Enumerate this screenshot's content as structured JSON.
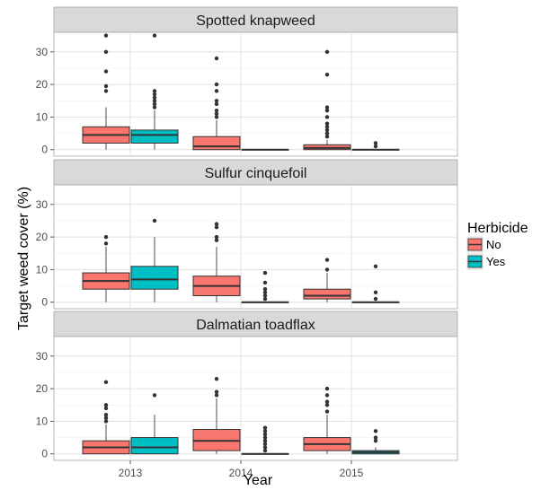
{
  "chart_data": {
    "type": "boxplot",
    "xlabel": "Year",
    "ylabel": "Target weed cover (%)",
    "categories": [
      "2013",
      "2014",
      "2015"
    ],
    "ylim": [
      -2,
      36
    ],
    "yticks": [
      0,
      10,
      20,
      30
    ],
    "grid": true,
    "legend": {
      "title": "Herbicide",
      "position": "right",
      "entries": [
        {
          "label": "No",
          "color": "#F8766D"
        },
        {
          "label": "Yes",
          "color": "#00BFC4"
        }
      ]
    },
    "panels": [
      {
        "title": "Spotted knapweed",
        "groups": [
          {
            "year": "2013",
            "herbicide": "No",
            "min": 0,
            "q1": 2,
            "median": 4.5,
            "q3": 7,
            "max": 13,
            "outliers": [
              18,
              19.5,
              24,
              30,
              35
            ]
          },
          {
            "year": "2013",
            "herbicide": "Yes",
            "min": 0,
            "q1": 2,
            "median": 4.5,
            "q3": 6,
            "max": 12,
            "outliers": [
              13,
              14,
              15,
              16,
              17,
              18,
              35
            ]
          },
          {
            "year": "2014",
            "herbicide": "No",
            "min": 0,
            "q1": 0,
            "median": 1,
            "q3": 4,
            "max": 9,
            "outliers": [
              10,
              11,
              12,
              14,
              15,
              18,
              20,
              28
            ]
          },
          {
            "year": "2014",
            "herbicide": "Yes",
            "min": 0,
            "q1": 0,
            "median": 0,
            "q3": 0,
            "max": 0,
            "outliers": []
          },
          {
            "year": "2015",
            "herbicide": "No",
            "min": 0,
            "q1": 0,
            "median": 0.5,
            "q3": 1.5,
            "max": 3,
            "outliers": [
              4,
              5,
              6,
              7,
              8,
              10,
              12,
              13,
              23,
              30
            ]
          },
          {
            "year": "2015",
            "herbicide": "Yes",
            "min": 0,
            "q1": 0,
            "median": 0,
            "q3": 0,
            "max": 0,
            "outliers": [
              1,
              2
            ]
          }
        ]
      },
      {
        "title": "Sulfur cinquefoil",
        "groups": [
          {
            "year": "2013",
            "herbicide": "No",
            "min": 0,
            "q1": 4,
            "median": 6.5,
            "q3": 9,
            "max": 17,
            "outliers": [
              18,
              20
            ]
          },
          {
            "year": "2013",
            "herbicide": "Yes",
            "min": 0,
            "q1": 4,
            "median": 7,
            "q3": 11,
            "max": 20,
            "outliers": [
              25
            ]
          },
          {
            "year": "2014",
            "herbicide": "No",
            "min": 0,
            "q1": 2,
            "median": 5,
            "q3": 8,
            "max": 17,
            "outliers": [
              19,
              20,
              23,
              24
            ]
          },
          {
            "year": "2014",
            "herbicide": "Yes",
            "min": 0,
            "q1": 0,
            "median": 0,
            "q3": 0,
            "max": 0,
            "outliers": [
              1,
              2,
              3,
              4,
              6,
              9
            ]
          },
          {
            "year": "2015",
            "herbicide": "No",
            "min": 0,
            "q1": 1,
            "median": 2,
            "q3": 4,
            "max": 9,
            "outliers": [
              10,
              13
            ]
          },
          {
            "year": "2015",
            "herbicide": "Yes",
            "min": 0,
            "q1": 0,
            "median": 0,
            "q3": 0,
            "max": 0,
            "outliers": [
              1,
              3,
              11
            ]
          }
        ]
      },
      {
        "title": "Dalmatian toadflax",
        "groups": [
          {
            "year": "2013",
            "herbicide": "No",
            "min": 0,
            "q1": 0,
            "median": 2,
            "q3": 4,
            "max": 9,
            "outliers": [
              10,
              11,
              12,
              14,
              15,
              22
            ]
          },
          {
            "year": "2013",
            "herbicide": "Yes",
            "min": 0,
            "q1": 0,
            "median": 2,
            "q3": 5,
            "max": 12,
            "outliers": [
              18
            ]
          },
          {
            "year": "2014",
            "herbicide": "No",
            "min": 0,
            "q1": 1,
            "median": 4,
            "q3": 7.5,
            "max": 17,
            "outliers": [
              18,
              19,
              23
            ]
          },
          {
            "year": "2014",
            "herbicide": "Yes",
            "min": 0,
            "q1": 0,
            "median": 0,
            "q3": 0,
            "max": 0,
            "outliers": [
              1,
              2,
              3,
              4,
              5,
              6,
              7,
              8
            ]
          },
          {
            "year": "2015",
            "herbicide": "No",
            "min": 0,
            "q1": 1,
            "median": 3,
            "q3": 5,
            "max": 12,
            "outliers": [
              13,
              15,
              16,
              18,
              20
            ]
          },
          {
            "year": "2015",
            "herbicide": "Yes",
            "min": 0,
            "q1": 0,
            "median": 0.5,
            "q3": 1,
            "max": 2,
            "outliers": [
              4,
              5,
              7
            ]
          }
        ]
      }
    ]
  }
}
